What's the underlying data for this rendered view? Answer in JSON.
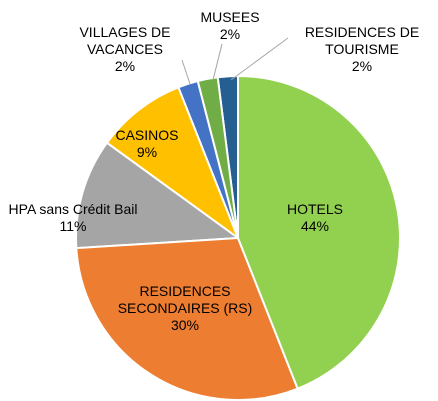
{
  "chart_data": {
    "type": "pie",
    "categories": [
      "HOTELS",
      "RESIDENCES SECONDAIRES (RS)",
      "HPA sans Crédit Bail",
      "CASINOS",
      "VILLAGES DE VACANCES",
      "MUSEES",
      "RESIDENCES DE TOURISME"
    ],
    "values": [
      44,
      30,
      11,
      9,
      2,
      2,
      2
    ],
    "value_labels": [
      "44%",
      "30%",
      "11%",
      "9%",
      "2%",
      "2%",
      "2%"
    ],
    "colors": [
      "#92d050",
      "#ed7d31",
      "#a5a5a5",
      "#ffc000",
      "#4472c4",
      "#70ad47",
      "#255e91"
    ]
  }
}
